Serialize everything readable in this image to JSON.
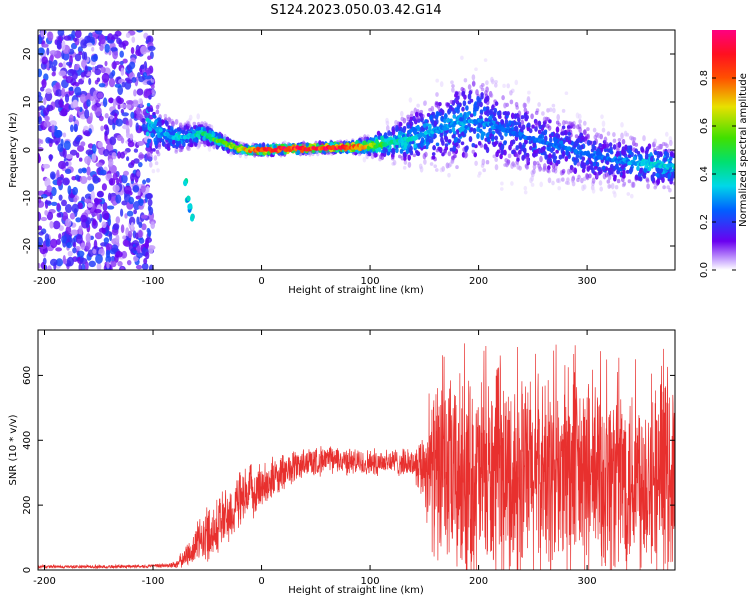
{
  "title": "S124.2023.050.03.42.G14",
  "chart_data": [
    {
      "type": "heatmap",
      "description_units": "frequency spectrogram vs height",
      "xlabel": "Height of straight line (km)",
      "ylabel": "Frequency (Hz)",
      "xlim": [
        -206,
        381
      ],
      "ylim": [
        -25,
        25
      ],
      "xticks": [
        -200,
        -100,
        0,
        100,
        200,
        300
      ],
      "yticks": [
        -20,
        -10,
        0,
        10,
        20
      ],
      "grid": false,
      "colormap": [
        "#ffffff",
        "#6a00f0",
        "#0080ff",
        "#00e0e0",
        "#00e000",
        "#ffe000",
        "#ff2000",
        "#ff0080"
      ],
      "colorbar": {
        "label": "Normalized spectral amplitude",
        "range": [
          0,
          1
        ],
        "ticks": [
          0.0,
          0.2,
          0.4,
          0.6,
          0.8
        ]
      },
      "ridge": {
        "x": [
          -105,
          -95,
          -85,
          -75,
          -65,
          -55,
          -45,
          -35,
          -25,
          -15,
          0,
          20,
          40,
          60,
          80,
          100,
          120,
          140,
          160,
          180,
          200,
          220,
          240,
          260,
          280,
          300,
          320,
          340,
          360,
          381
        ],
        "y": [
          6,
          4,
          3,
          2.5,
          3,
          3.5,
          2.5,
          1.5,
          0.5,
          0,
          0,
          0.2,
          0.3,
          0.5,
          0.6,
          0.8,
          1.5,
          2.5,
          4,
          5.5,
          6,
          4.5,
          3,
          1.5,
          0.5,
          -1,
          -2,
          -2.5,
          -3,
          -3.5
        ],
        "amplitude": [
          0.35,
          0.3,
          0.3,
          0.35,
          0.35,
          0.4,
          0.5,
          0.55,
          0.6,
          0.7,
          0.85,
          0.9,
          0.85,
          0.9,
          0.85,
          0.6,
          0.4,
          0.35,
          0.3,
          0.3,
          0.3,
          0.25,
          0.25,
          0.25,
          0.25,
          0.25,
          0.25,
          0.3,
          0.35,
          0.35
        ],
        "spread_hz": [
          10,
          6,
          4,
          3,
          3,
          2.5,
          2,
          1.5,
          1.2,
          1,
          1,
          1,
          1,
          1,
          1,
          2,
          4,
          6,
          8,
          10,
          10,
          9,
          9,
          8,
          8,
          7,
          6,
          6,
          5,
          5
        ]
      },
      "branch": {
        "x": [
          -70,
          -68,
          -66,
          -64
        ],
        "y": [
          -7,
          -10,
          -12,
          -14
        ],
        "amplitude": 0.35
      },
      "noise_region": {
        "x_range": [
          -206,
          -100
        ],
        "y_range": [
          -25,
          25
        ],
        "amplitude": 0.2
      }
    },
    {
      "type": "line",
      "xlabel": "Height of straight line (km)",
      "ylabel": "SNR (10 * v/v)",
      "xlim": [
        -206,
        381
      ],
      "ylim": [
        0,
        740
      ],
      "xticks": [
        -200,
        -100,
        0,
        100,
        200,
        300
      ],
      "yticks": [
        0,
        200,
        400,
        600
      ],
      "grid": false,
      "series": [
        {
          "color": "#e8302e",
          "envelope_x": [
            -206,
            -150,
            -100,
            -80,
            -70,
            -60,
            -50,
            -40,
            -30,
            -20,
            -10,
            0,
            10,
            20,
            30,
            40,
            50,
            60,
            70,
            80,
            90,
            100,
            110,
            120,
            130,
            140,
            150,
            160,
            170,
            180,
            200,
            220,
            240,
            260,
            280,
            300,
            320,
            340,
            360,
            381
          ],
          "envelope_mean": [
            10,
            10,
            12,
            15,
            40,
            80,
            110,
            140,
            170,
            210,
            240,
            260,
            280,
            300,
            320,
            330,
            335,
            340,
            340,
            335,
            330,
            330,
            335,
            335,
            330,
            330,
            320,
            300,
            290,
            280,
            280,
            280,
            285,
            285,
            285,
            285,
            285,
            290,
            295,
            300
          ],
          "envelope_spread": [
            5,
            5,
            5,
            10,
            30,
            60,
            80,
            90,
            90,
            90,
            80,
            70,
            60,
            55,
            50,
            45,
            45,
            40,
            40,
            40,
            40,
            40,
            40,
            40,
            40,
            40,
            120,
            260,
            280,
            300,
            300,
            300,
            300,
            300,
            300,
            300,
            300,
            290,
            280,
            270
          ]
        }
      ]
    }
  ]
}
